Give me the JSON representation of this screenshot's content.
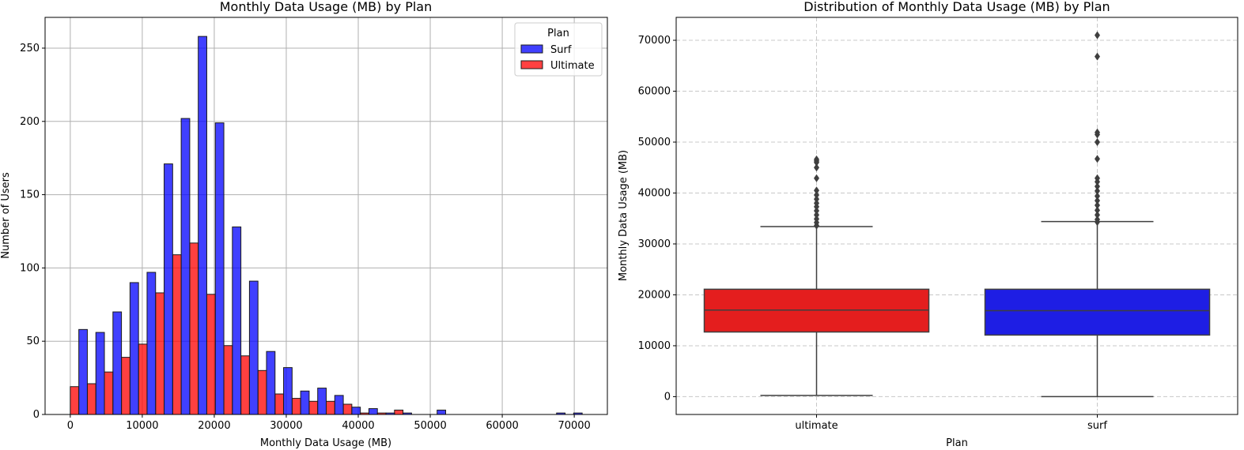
{
  "chart_data": [
    {
      "type": "bar",
      "subtype": "dodged histogram",
      "title": "Monthly Data Usage (MB) by Plan",
      "xlabel": "Monthly Data Usage (MB)",
      "ylabel": "Number of Users",
      "xlim": [
        -3500,
        74600
      ],
      "ylim": [
        0,
        271
      ],
      "xticks": [
        0,
        10000,
        20000,
        30000,
        40000,
        50000,
        60000,
        70000
      ],
      "yticks": [
        0,
        50,
        100,
        150,
        200,
        250
      ],
      "grid": true,
      "bin_width": 2370,
      "bin_start": 0,
      "legend": {
        "title": "Plan",
        "placement": "top-right"
      },
      "series": [
        {
          "name": "Surf",
          "color": "#0000ff",
          "values": [
            58,
            56,
            70,
            90,
            97,
            171,
            202,
            258,
            199,
            128,
            91,
            43,
            32,
            16,
            18,
            13,
            5,
            4,
            1,
            1,
            0,
            3,
            0,
            0,
            0,
            0,
            0,
            0,
            1,
            1
          ]
        },
        {
          "name": "Ultimate",
          "color": "#ff0000",
          "values": [
            19,
            21,
            29,
            39,
            48,
            83,
            109,
            117,
            82,
            47,
            40,
            30,
            14,
            11,
            9,
            9,
            7,
            1,
            1,
            3,
            0,
            0,
            0,
            0,
            0,
            0,
            0,
            0,
            0,
            0
          ]
        }
      ]
    },
    {
      "type": "box",
      "title": "Distribution of Monthly Data Usage (MB) by Plan",
      "xlabel": "Plan",
      "ylabel": "Monthly Data Usage (MB)",
      "ylim": [
        -3500,
        74500
      ],
      "yticks": [
        0,
        10000,
        20000,
        30000,
        40000,
        50000,
        60000,
        70000
      ],
      "grid": true,
      "categories": [
        "ultimate",
        "surf"
      ],
      "boxes": [
        {
          "category": "ultimate",
          "color": "#e41e1e",
          "whisker_low": 250,
          "q1": 12700,
          "median": 17000,
          "q3": 21100,
          "whisker_high": 33400,
          "outliers": [
            46600,
            46300,
            46000,
            45000,
            42900,
            40500,
            39600,
            38800,
            38000,
            37300,
            36500,
            35700,
            34900,
            34200,
            33600
          ]
        },
        {
          "category": "surf",
          "color": "#1e1ee4",
          "whisker_low": 0,
          "q1": 12100,
          "median": 16900,
          "q3": 21100,
          "whisker_high": 34400,
          "outliers": [
            71000,
            66800,
            51900,
            51500,
            50000,
            46700,
            42900,
            42200,
            41300,
            40400,
            39400,
            38500,
            37600,
            36600,
            35700,
            34800,
            34300
          ]
        }
      ]
    }
  ]
}
